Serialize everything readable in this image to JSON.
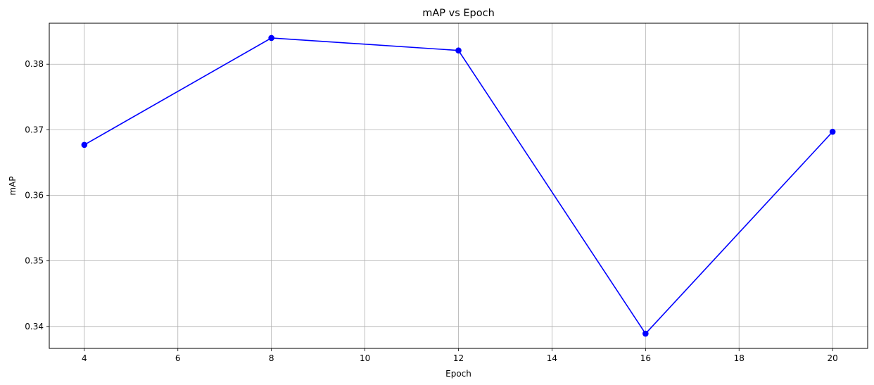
{
  "chart_data": {
    "type": "line",
    "title": "mAP vs Epoch",
    "xlabel": "Epoch",
    "ylabel": "mAP",
    "xlim": [
      3.25,
      20.75
    ],
    "ylim": [
      0.33665,
      0.38625
    ],
    "xticks": [
      4,
      6,
      8,
      10,
      12,
      14,
      16,
      18,
      20
    ],
    "yticks": [
      0.34,
      0.35,
      0.36,
      0.37,
      0.38
    ],
    "ytick_labels": [
      "0.34",
      "0.35",
      "0.36",
      "0.37",
      "0.38"
    ],
    "grid": true,
    "series": [
      {
        "color": "#0000ff",
        "marker": "circle",
        "x": [
          4,
          8,
          12,
          16,
          20
        ],
        "y": [
          0.3677,
          0.384,
          0.3821,
          0.3389,
          0.3697
        ]
      }
    ]
  }
}
